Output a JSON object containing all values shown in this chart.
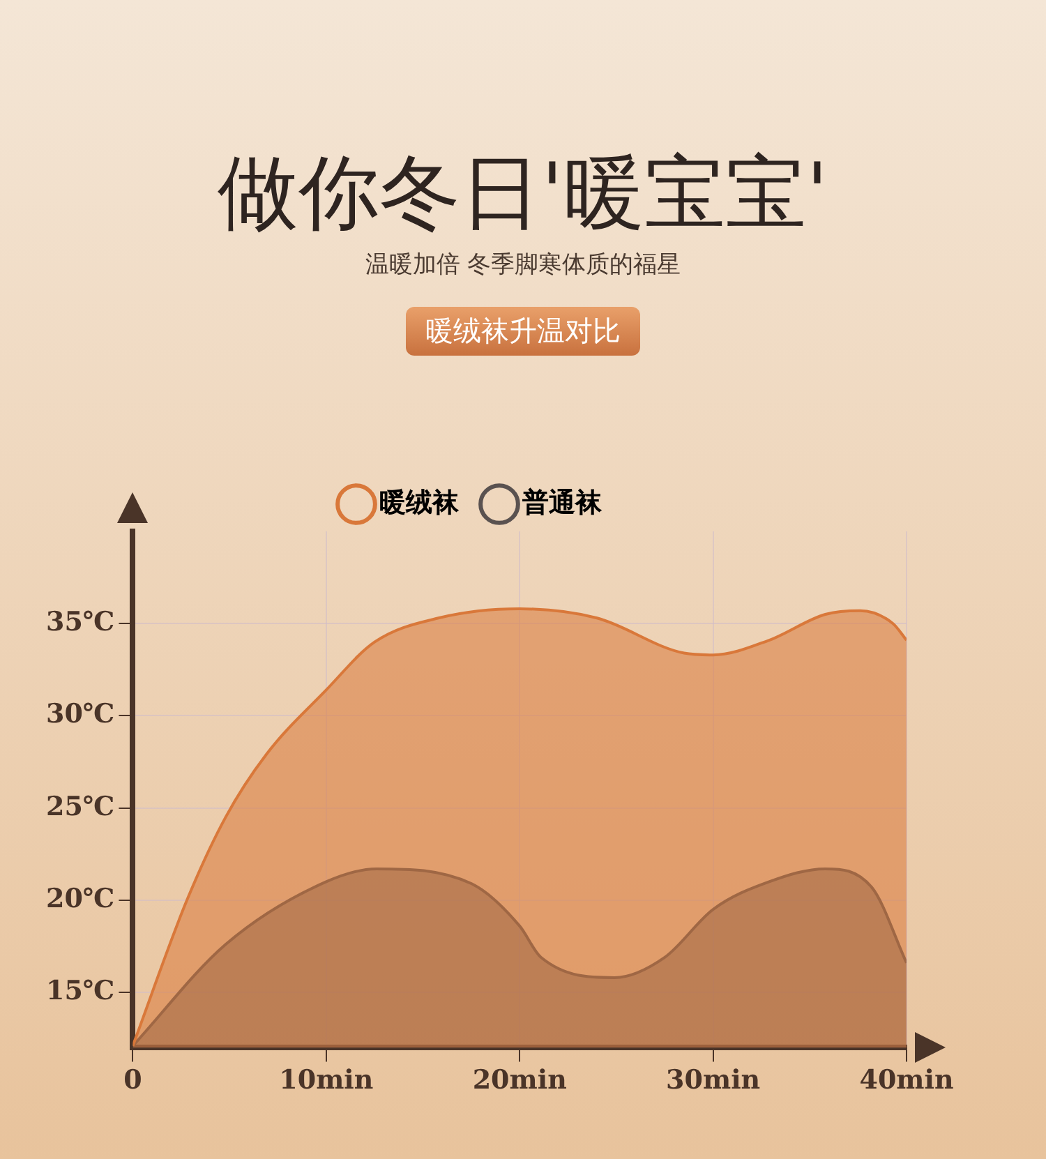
{
  "chart_data": {
    "type": "area",
    "title": "做你冬日'暖宝宝'",
    "subtitle": "温暖加倍 冬季脚寒体质的福星",
    "annotations": [
      "暖绒袜升温对比"
    ],
    "series": [
      {
        "name": "暖绒袜",
        "color": "#d9783a",
        "x": [
          0,
          2.8,
          4.8,
          6.9,
          10,
          12.5,
          15.8,
          20,
          24,
          28.5,
          30,
          32.9,
          35.8,
          37.6,
          39.3,
          40
        ],
        "values": [
          12.1,
          20.0,
          24.5,
          27.9,
          31.4,
          34.0,
          35.3,
          35.8,
          35.3,
          33.4,
          33.3,
          34.1,
          35.5,
          35.7,
          35.0,
          34.1
        ]
      },
      {
        "name": "普通袜",
        "color": "#5a5250",
        "x": [
          0,
          4.8,
          10,
          12.6,
          17.5,
          20,
          21.1,
          24.9,
          27.5,
          30,
          32.9,
          35.8,
          38.2,
          40
        ],
        "values": [
          12.1,
          17.6,
          21.0,
          21.7,
          20.9,
          18.6,
          16.9,
          15.8,
          16.9,
          19.5,
          21.0,
          21.7,
          20.7,
          16.6
        ]
      }
    ],
    "xlim": [
      0,
      40
    ],
    "xticks": [
      0,
      {
        "value": 10,
        "label": "10min"
      },
      {
        "value": 20,
        "label": "20min"
      },
      {
        "value": 30,
        "label": "30min"
      },
      {
        "value": 40,
        "label": "40min"
      }
    ],
    "ylim": [
      12,
      40
    ],
    "yticks": [
      {
        "value": 15,
        "label": "15℃"
      },
      {
        "value": 20,
        "label": "20℃"
      },
      {
        "value": 25,
        "label": "25℃"
      },
      {
        "value": 30,
        "label": "30℃"
      },
      {
        "value": 35,
        "label": "35℃"
      }
    ],
    "grid": true,
    "legend": "top",
    "marker": "none",
    "line_style": "solid"
  }
}
